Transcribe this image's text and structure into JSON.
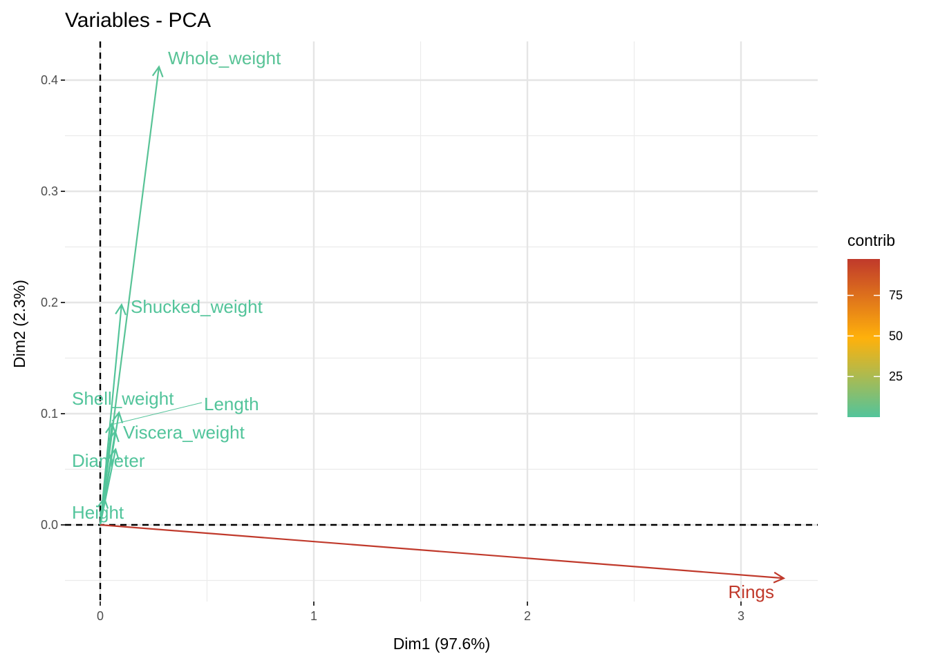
{
  "chart_data": {
    "type": "scatter",
    "title": "Variables - PCA",
    "xlabel": "Dim1 (97.6%)",
    "ylabel": "Dim2 (2.3%)",
    "xlim": [
      -0.16,
      3.36
    ],
    "ylim": [
      -0.068,
      0.43
    ],
    "x_ticks": [
      0,
      1,
      2,
      3
    ],
    "x_tick_labels": [
      "0",
      "1",
      "2",
      "3"
    ],
    "y_ticks": [
      0.0,
      0.1,
      0.2,
      0.3,
      0.4
    ],
    "y_tick_labels": [
      "0.0",
      "0.1",
      "0.2",
      "0.3",
      "0.4"
    ],
    "grid": true,
    "reference_lines": {
      "x": 0,
      "y": 0,
      "style": "dashed"
    },
    "variables": [
      {
        "name": "Whole_weight",
        "x": 0.275,
        "y": 0.412,
        "contrib": 1.7
      },
      {
        "name": "Shucked_weight",
        "x": 0.1,
        "y": 0.198,
        "contrib": 0.4
      },
      {
        "name": "Length",
        "x": 0.088,
        "y": 0.101,
        "contrib": 0.2
      },
      {
        "name": "Viscera_weight",
        "x": 0.07,
        "y": 0.084,
        "contrib": 0.1
      },
      {
        "name": "Shell_weight",
        "x": 0.055,
        "y": 0.091,
        "contrib": 0.1
      },
      {
        "name": "Diameter",
        "x": 0.072,
        "y": 0.068,
        "contrib": 0.1
      },
      {
        "name": "Height",
        "x": 0.019,
        "y": 0.024,
        "contrib": 0.0
      },
      {
        "name": "Rings",
        "x": 3.2,
        "y": -0.048,
        "contrib": 97.4
      }
    ],
    "legend": {
      "title": "contrib",
      "position": "right",
      "ticks": [
        25,
        50,
        75
      ],
      "tick_labels": [
        "25",
        "50",
        "75"
      ],
      "range": [
        0,
        97.4
      ],
      "gradient_colors": [
        "#52c49b",
        "#ffb10b",
        "#c0392b"
      ]
    }
  }
}
